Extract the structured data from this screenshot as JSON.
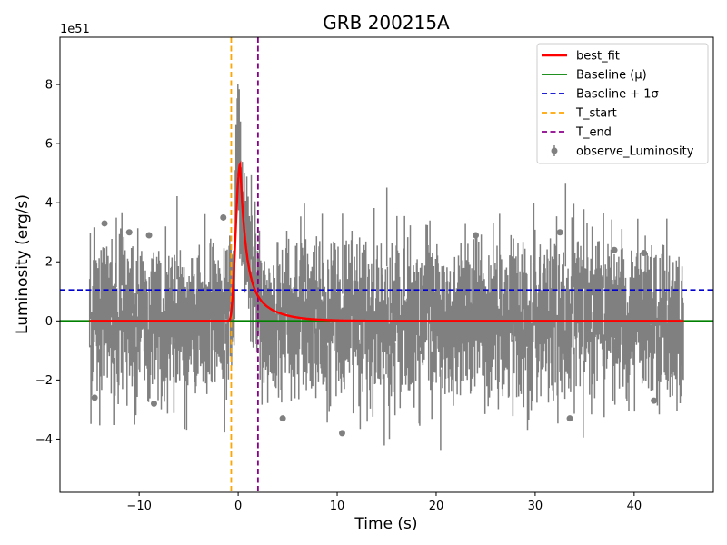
{
  "chart_data": {
    "type": "scatter",
    "title": "GRB 200215A",
    "xlabel": "Time (s)",
    "ylabel": "Luminosity (erg/s)",
    "y_offset_label": "1e51",
    "xlim": [
      -18,
      48
    ],
    "ylim": [
      -5.8,
      9.6
    ],
    "x_ticks": [
      -10,
      0,
      10,
      20,
      30,
      40
    ],
    "x_tick_labels": [
      "−10",
      "0",
      "10",
      "20",
      "30",
      "40"
    ],
    "y_ticks": [
      -4,
      -2,
      0,
      2,
      4,
      6,
      8
    ],
    "y_tick_labels": [
      "−4",
      "−2",
      "0",
      "2",
      "4",
      "6",
      "8"
    ],
    "legend_position": "top-right",
    "data_range": [
      -15,
      45
    ],
    "time_step": 0.064,
    "noise_sigma": 1.0,
    "error_bar": 1.3,
    "series": [
      {
        "name": "best_fit",
        "kind": "line",
        "color": "#ff0000",
        "peak_time": 0.2,
        "peak_value": 5.3,
        "rise_start": -1.0
      },
      {
        "name": "Baseline (μ)",
        "kind": "hline",
        "color": "#008000",
        "value": 0.0
      },
      {
        "name": "Baseline + 1σ",
        "kind": "hline_dashed",
        "color": "#0000cd",
        "value": 1.05
      },
      {
        "name": "T_start",
        "kind": "vline_dashed",
        "color": "#ffa500",
        "value": -0.7
      },
      {
        "name": "T_end",
        "kind": "vline_dashed",
        "color": "#8b008b",
        "value": 2.0
      },
      {
        "name": "observe_Luminosity",
        "kind": "errorbar",
        "color": "#808080"
      }
    ]
  }
}
